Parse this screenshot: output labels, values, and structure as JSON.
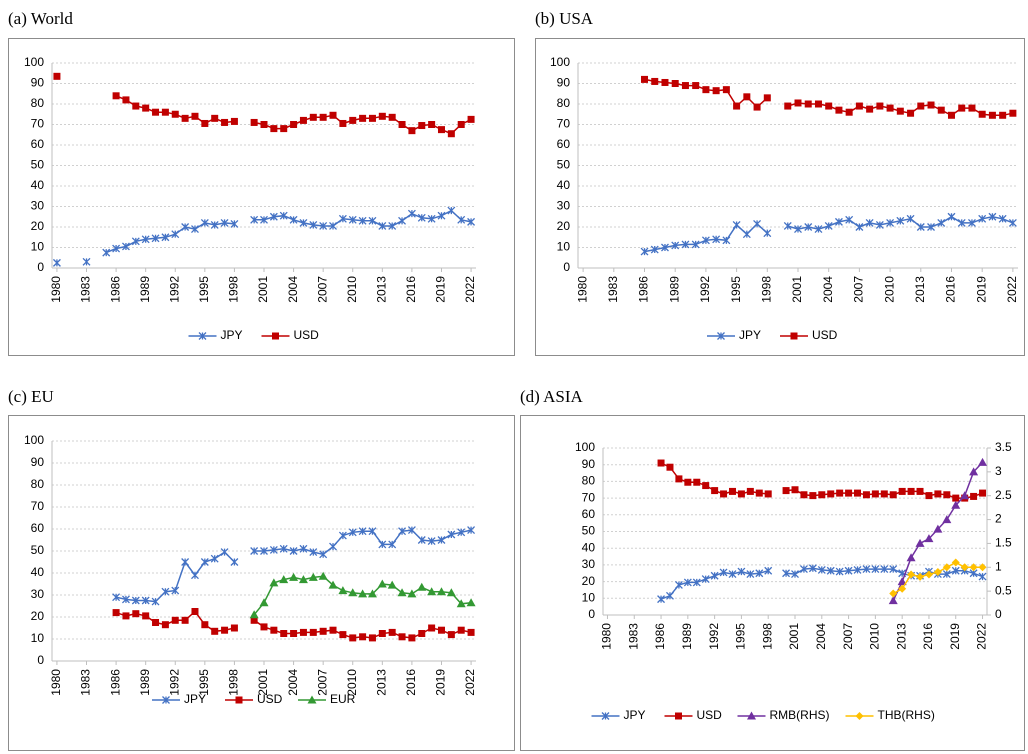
{
  "chart_data": [
    {
      "type": "line",
      "title": "(a) World",
      "grid": true,
      "legend": "bottom",
      "x": [
        1980,
        1981,
        1982,
        1983,
        1984,
        1985,
        1986,
        1987,
        1988,
        1989,
        1990,
        1991,
        1992,
        1993,
        1994,
        1995,
        1996,
        1997,
        1998,
        1999,
        2000,
        2001,
        2002,
        2003,
        2004,
        2005,
        2006,
        2007,
        2008,
        2009,
        2010,
        2011,
        2012,
        2013,
        2014,
        2015,
        2016,
        2017,
        2018,
        2019,
        2020,
        2021,
        2022
      ],
      "xlim": [
        1980,
        2022
      ],
      "xticks": [
        1980,
        1983,
        1986,
        1989,
        1992,
        1995,
        1998,
        2001,
        2004,
        2007,
        2010,
        2013,
        2016,
        2019,
        2022
      ],
      "ylim": [
        0,
        100
      ],
      "yticks": [
        0,
        10,
        20,
        30,
        40,
        50,
        60,
        70,
        80,
        90,
        100
      ],
      "series": [
        {
          "name": "JPY",
          "color": "#4472c4",
          "marker": "star",
          "values": [
            2.5,
            null,
            null,
            3,
            null,
            7.5,
            9.5,
            10.5,
            13,
            14,
            14.5,
            15,
            16.5,
            20,
            19,
            22,
            21,
            22,
            21.5,
            null,
            23.5,
            23.5,
            25,
            25.5,
            23.5,
            22,
            21,
            20.5,
            20.5,
            24,
            23.5,
            23,
            23,
            20.5,
            20.5,
            23,
            26.5,
            24.5,
            24,
            25.5,
            28,
            23.5,
            22.5
          ]
        },
        {
          "name": "USD",
          "color": "#c00000",
          "marker": "square",
          "values": [
            93.5,
            null,
            null,
            null,
            null,
            null,
            84,
            82,
            79,
            78,
            76,
            76,
            75,
            73,
            74,
            70.5,
            73,
            71,
            71.5,
            null,
            71,
            70,
            68,
            68,
            70,
            72,
            73.5,
            73.5,
            74.5,
            70.5,
            72,
            73,
            73,
            74,
            73.5,
            70,
            67,
            69.5,
            70,
            67.5,
            65.5,
            70,
            72.5
          ]
        }
      ]
    },
    {
      "type": "line",
      "title": "(b) USA",
      "grid": true,
      "legend": "bottom",
      "x": [
        1980,
        1981,
        1982,
        1983,
        1984,
        1985,
        1986,
        1987,
        1988,
        1989,
        1990,
        1991,
        1992,
        1993,
        1994,
        1995,
        1996,
        1997,
        1998,
        1999,
        2000,
        2001,
        2002,
        2003,
        2004,
        2005,
        2006,
        2007,
        2008,
        2009,
        2010,
        2011,
        2012,
        2013,
        2014,
        2015,
        2016,
        2017,
        2018,
        2019,
        2020,
        2021,
        2022
      ],
      "xlim": [
        1980,
        2022
      ],
      "xticks": [
        1980,
        1983,
        1986,
        1989,
        1992,
        1995,
        1998,
        2001,
        2004,
        2007,
        2010,
        2013,
        2016,
        2019,
        2022
      ],
      "ylim": [
        0,
        100
      ],
      "yticks": [
        0,
        10,
        20,
        30,
        40,
        50,
        60,
        70,
        80,
        90,
        100
      ],
      "series": [
        {
          "name": "JPY",
          "color": "#4472c4",
          "marker": "star",
          "values": [
            null,
            null,
            null,
            null,
            null,
            null,
            8,
            9,
            10,
            11,
            11.5,
            11.5,
            13.5,
            14,
            13.5,
            21,
            16.5,
            21.5,
            17,
            null,
            20.5,
            19,
            20,
            19,
            20.5,
            22.5,
            23.5,
            20,
            22,
            21,
            22,
            23,
            24,
            20,
            20,
            22,
            25,
            22,
            22,
            24,
            25,
            24,
            22
          ]
        },
        {
          "name": "USD",
          "color": "#c00000",
          "marker": "square",
          "values": [
            null,
            null,
            null,
            null,
            null,
            null,
            92,
            91,
            90.5,
            90,
            89,
            89,
            87,
            86.5,
            87,
            79,
            83.5,
            78.5,
            83,
            null,
            79,
            80.5,
            80,
            80,
            79,
            77,
            76,
            79,
            77.5,
            79,
            78,
            76.5,
            75.5,
            79,
            79.5,
            77,
            74.5,
            78,
            78,
            75,
            74.5,
            74.5,
            75.5
          ]
        }
      ]
    },
    {
      "type": "line",
      "title": "(c) EU",
      "grid": true,
      "legend": "bottom",
      "x": [
        1980,
        1981,
        1982,
        1983,
        1984,
        1985,
        1986,
        1987,
        1988,
        1989,
        1990,
        1991,
        1992,
        1993,
        1994,
        1995,
        1996,
        1997,
        1998,
        1999,
        2000,
        2001,
        2002,
        2003,
        2004,
        2005,
        2006,
        2007,
        2008,
        2009,
        2010,
        2011,
        2012,
        2013,
        2014,
        2015,
        2016,
        2017,
        2018,
        2019,
        2020,
        2021,
        2022
      ],
      "xlim": [
        1980,
        2022
      ],
      "xticks": [
        1980,
        1983,
        1986,
        1989,
        1992,
        1995,
        1998,
        2001,
        2004,
        2007,
        2010,
        2013,
        2016,
        2019,
        2022
      ],
      "ylim": [
        0,
        100
      ],
      "yticks": [
        0,
        10,
        20,
        30,
        40,
        50,
        60,
        70,
        80,
        90,
        100
      ],
      "series": [
        {
          "name": "JPY",
          "color": "#4472c4",
          "marker": "star",
          "values": [
            null,
            null,
            null,
            null,
            null,
            null,
            29,
            28,
            27.5,
            27.5,
            27,
            31.5,
            32,
            45,
            39,
            45,
            46.5,
            49.5,
            45,
            null,
            50,
            50,
            50.5,
            51,
            50,
            51,
            49.5,
            48.5,
            52,
            57,
            58.5,
            59,
            59,
            53,
            53,
            59,
            59.5,
            55,
            54.5,
            55,
            57.5,
            58.5,
            59.5
          ]
        },
        {
          "name": "USD",
          "color": "#c00000",
          "marker": "square",
          "values": [
            null,
            null,
            null,
            null,
            null,
            null,
            22,
            20.5,
            21.5,
            20.5,
            17.5,
            16.5,
            18.5,
            18.5,
            22.5,
            16.5,
            13.5,
            14,
            15,
            null,
            18.5,
            15.5,
            14,
            12.5,
            12.5,
            13,
            13,
            13.5,
            14,
            12,
            10.5,
            11,
            10.5,
            12.5,
            13,
            11,
            10.5,
            12.5,
            15,
            14,
            12,
            14,
            13
          ]
        },
        {
          "name": "EUR",
          "color": "#339933",
          "marker": "triangle",
          "values": [
            null,
            null,
            null,
            null,
            null,
            null,
            null,
            null,
            null,
            null,
            null,
            null,
            null,
            null,
            null,
            null,
            null,
            null,
            null,
            null,
            21,
            26.5,
            35.5,
            37,
            38,
            37,
            38,
            38.5,
            34.5,
            32,
            31,
            30.5,
            30.5,
            35,
            34.5,
            31,
            30.5,
            33.5,
            31.5,
            31.5,
            31,
            26,
            26.5
          ]
        }
      ]
    },
    {
      "type": "line",
      "title": "(d) ASIA",
      "grid": true,
      "legend": "bottom",
      "x": [
        1980,
        1981,
        1982,
        1983,
        1984,
        1985,
        1986,
        1987,
        1988,
        1989,
        1990,
        1991,
        1992,
        1993,
        1994,
        1995,
        1996,
        1997,
        1998,
        1999,
        2000,
        2001,
        2002,
        2003,
        2004,
        2005,
        2006,
        2007,
        2008,
        2009,
        2010,
        2011,
        2012,
        2013,
        2014,
        2015,
        2016,
        2017,
        2018,
        2019,
        2020,
        2021,
        2022
      ],
      "xlim": [
        1980,
        2022
      ],
      "xticks": [
        1980,
        1983,
        1986,
        1989,
        1992,
        1995,
        1998,
        2001,
        2004,
        2007,
        2010,
        2013,
        2016,
        2019,
        2022
      ],
      "ylim": [
        0,
        100
      ],
      "yticks": [
        0,
        10,
        20,
        30,
        40,
        50,
        60,
        70,
        80,
        90,
        100
      ],
      "y2lim": [
        0,
        3.5
      ],
      "y2ticks": [
        0,
        0.5,
        1,
        1.5,
        2,
        2.5,
        3,
        3.5
      ],
      "series": [
        {
          "name": "JPY",
          "color": "#4472c4",
          "marker": "star",
          "values": [
            null,
            null,
            null,
            null,
            null,
            null,
            9.5,
            11.5,
            18,
            19.5,
            19.5,
            21.5,
            23.5,
            25.5,
            24.5,
            26,
            24.5,
            25,
            26.5,
            null,
            25,
            24.5,
            27.5,
            28,
            27,
            26.5,
            26,
            26.5,
            27,
            27.5,
            27.5,
            27.5,
            27.5,
            25,
            23.5,
            23.5,
            26,
            24.5,
            24.5,
            26.5,
            26.5,
            25,
            23
          ]
        },
        {
          "name": "USD",
          "color": "#c00000",
          "marker": "square",
          "values": [
            null,
            null,
            null,
            null,
            null,
            null,
            91,
            88.5,
            81.5,
            79.5,
            79.5,
            77.5,
            74.5,
            72.5,
            74,
            72.5,
            74,
            73,
            72.5,
            null,
            74.5,
            75,
            72,
            71.5,
            72,
            72.5,
            73,
            73,
            73,
            72,
            72.5,
            72.5,
            72,
            74,
            74,
            74,
            71.5,
            72.5,
            72,
            70,
            70,
            71,
            73
          ]
        },
        {
          "name": "RMB(RHS)",
          "color": "#7030a0",
          "marker": "triangle",
          "axis": "y2",
          "values": [
            null,
            null,
            null,
            null,
            null,
            null,
            null,
            null,
            null,
            null,
            null,
            null,
            null,
            null,
            null,
            null,
            null,
            null,
            null,
            null,
            null,
            null,
            null,
            null,
            null,
            null,
            null,
            null,
            null,
            null,
            null,
            null,
            0.3,
            0.7,
            1.2,
            1.5,
            1.6,
            1.8,
            2.0,
            2.3,
            2.5,
            3.0,
            3.2
          ]
        },
        {
          "name": "THB(RHS)",
          "color": "#ffc000",
          "marker": "diamond",
          "axis": "y2",
          "values": [
            null,
            null,
            null,
            null,
            null,
            null,
            null,
            null,
            null,
            null,
            null,
            null,
            null,
            null,
            null,
            null,
            null,
            null,
            null,
            null,
            null,
            null,
            null,
            null,
            null,
            null,
            null,
            null,
            null,
            null,
            null,
            null,
            0.45,
            0.55,
            0.85,
            0.8,
            0.85,
            0.9,
            1.0,
            1.1,
            1.0,
            1.0,
            1.0
          ]
        }
      ]
    }
  ]
}
